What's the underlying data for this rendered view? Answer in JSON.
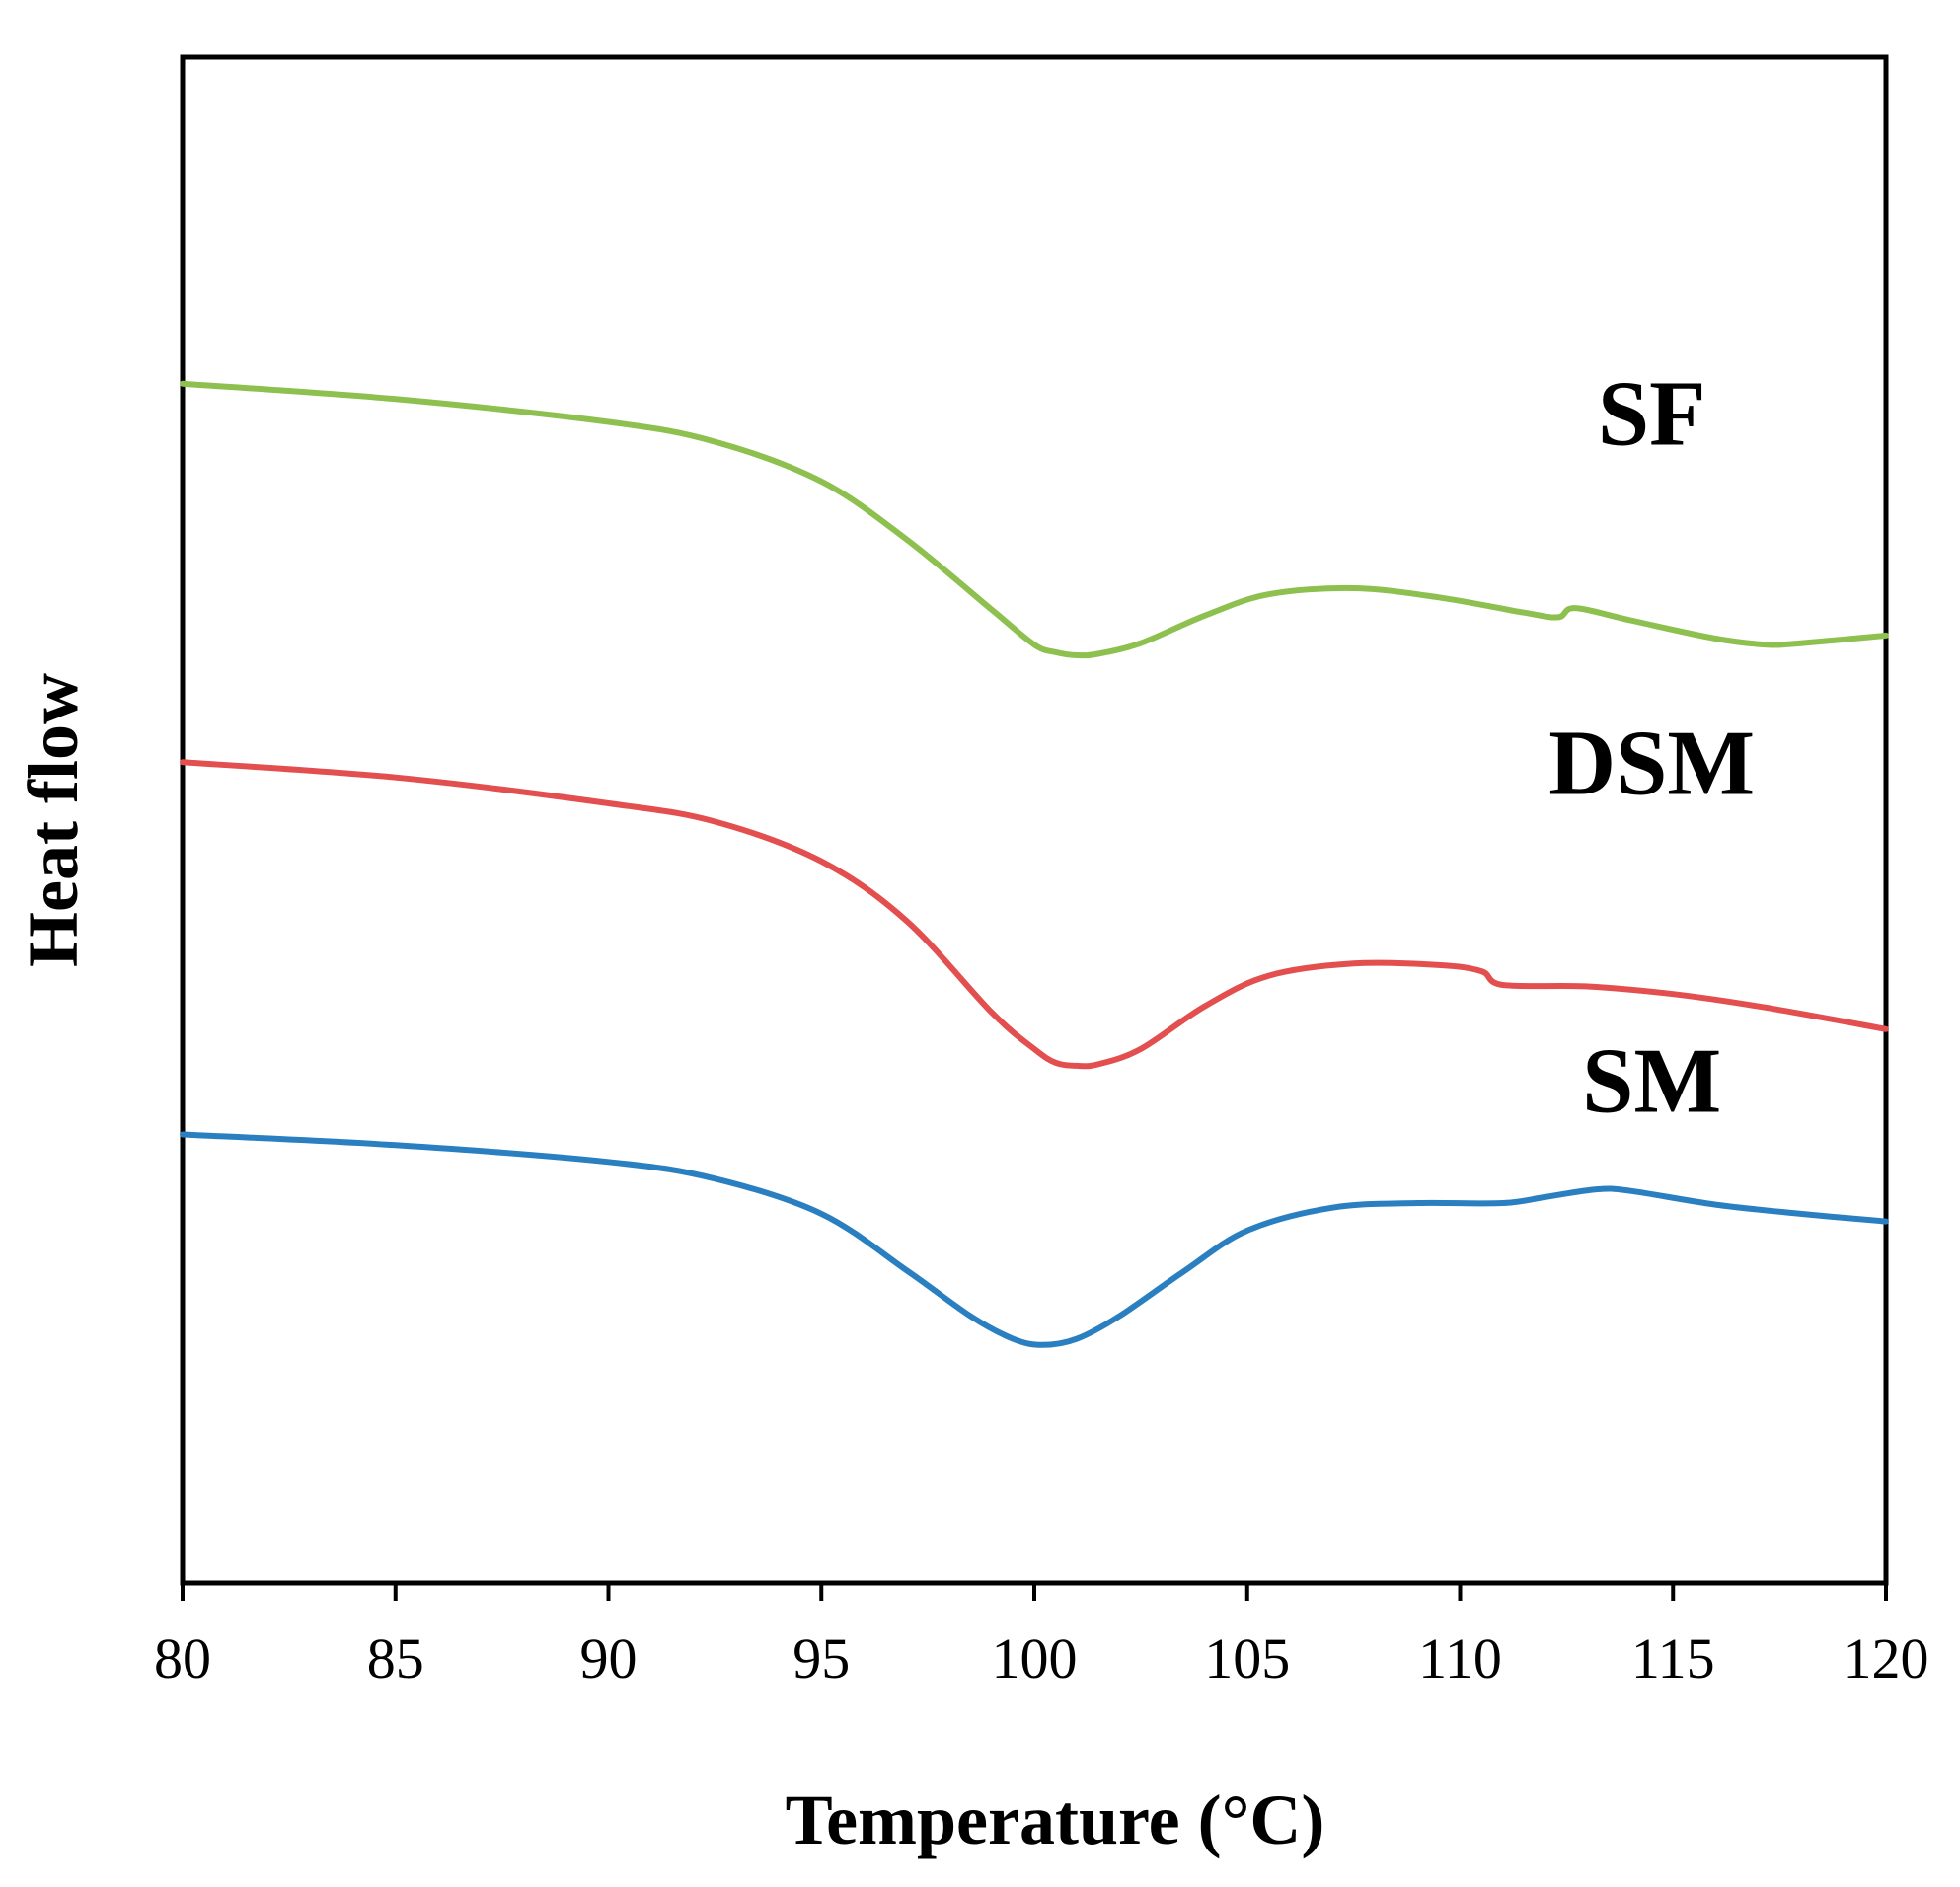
{
  "chart_data": {
    "type": "line",
    "xlabel": "Temperature (°C)",
    "ylabel": "Heat flow",
    "xlim": [
      80,
      120
    ],
    "ylim": [
      0,
      100
    ],
    "x_ticks": [
      80,
      85,
      90,
      95,
      100,
      105,
      110,
      115,
      120
    ],
    "grid": false,
    "series": [
      {
        "name": "SF",
        "color": "#8dc04f",
        "x": [
          80,
          85,
          90,
          92.5,
          95,
          97,
          99,
          100,
          100.5,
          101,
          101.5,
          102.5,
          104,
          105.5,
          107.5,
          109.5,
          111.5,
          112.3,
          112.7,
          114,
          116,
          117.2,
          118,
          120
        ],
        "y": [
          78.6,
          77.6,
          76.1,
          74.8,
          72.2,
          68.4,
          63.8,
          61.5,
          61.0,
          60.8,
          60.9,
          61.6,
          63.4,
          64.8,
          65.2,
          64.6,
          63.6,
          63.3,
          63.9,
          63.1,
          61.9,
          61.5,
          61.6,
          62.1
        ],
        "label_x": 114.5,
        "label_y": 74.6
      },
      {
        "name": "DSM",
        "color": "#e34e4f",
        "x": [
          80,
          85,
          90,
          92.5,
          95,
          97,
          99,
          100,
          100.5,
          101,
          101.5,
          102.5,
          104,
          105.5,
          107.5,
          109.5,
          110.5,
          111,
          113,
          115,
          117,
          120
        ],
        "y": [
          53.8,
          52.8,
          51.1,
          49.9,
          47.3,
          43.4,
          37.4,
          35.0,
          34.1,
          33.9,
          34.0,
          35.0,
          37.8,
          39.8,
          40.6,
          40.5,
          40.1,
          39.2,
          39.1,
          38.6,
          37.8,
          36.3
        ],
        "label_x": 114.5,
        "label_y": 51.7
      },
      {
        "name": "SM",
        "color": "#2a7fc1",
        "x": [
          80,
          85,
          90,
          92.5,
          95,
          97,
          98.5,
          99.5,
          100.2,
          101,
          102,
          103.5,
          105,
          107,
          109,
          111,
          112,
          113.2,
          114,
          116,
          118,
          120
        ],
        "y": [
          29.4,
          28.7,
          27.6,
          26.5,
          24.2,
          20.5,
          17.5,
          16.0,
          15.6,
          16.0,
          17.5,
          20.4,
          23.1,
          24.6,
          24.9,
          24.9,
          25.3,
          25.8,
          25.7,
          24.8,
          24.2,
          23.7
        ],
        "label_x": 114.5,
        "label_y": 30.9
      }
    ]
  }
}
